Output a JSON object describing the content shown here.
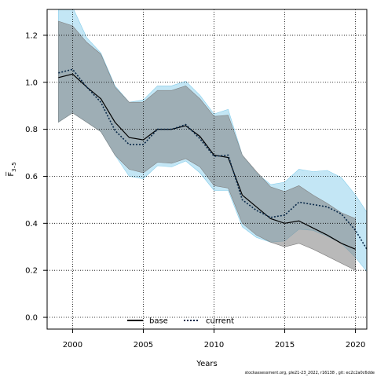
{
  "chart_data": {
    "type": "line",
    "xlabel": "Years",
    "ylabel": "F̅",
    "ylabel_sub": "3–5",
    "xlim": [
      1998.2,
      2020.8
    ],
    "ylim": [
      -0.05,
      1.31
    ],
    "x_ticks": [
      2000,
      2005,
      2010,
      2015,
      2020
    ],
    "y_ticks": [
      0.0,
      0.2,
      0.4,
      0.6,
      0.8,
      1.0,
      1.2
    ],
    "y_tick_labels": [
      "0.0",
      "0.2",
      "0.4",
      "0.6",
      "0.8",
      "1.0",
      "1.2"
    ],
    "grid": true,
    "legend_position": "bottom-center",
    "series": [
      {
        "name": "base",
        "style": "solid",
        "line_color": "#000000",
        "band_color": "#808080",
        "x": [
          1999,
          2000,
          2001,
          2002,
          2003,
          2004,
          2005,
          2006,
          2007,
          2008,
          2009,
          2010,
          2011,
          2012,
          2013,
          2014,
          2015,
          2016,
          2017,
          2018,
          2019,
          2020
        ],
        "values": [
          1.02,
          1.035,
          0.98,
          0.93,
          0.83,
          0.765,
          0.755,
          0.8,
          0.8,
          0.815,
          0.77,
          0.69,
          0.68,
          0.52,
          0.47,
          0.42,
          0.4,
          0.41,
          0.38,
          0.35,
          0.315,
          0.29
        ],
        "lower": [
          0.83,
          0.87,
          0.83,
          0.79,
          0.69,
          0.63,
          0.615,
          0.66,
          0.655,
          0.675,
          0.64,
          0.56,
          0.55,
          0.4,
          0.35,
          0.32,
          0.3,
          0.315,
          0.29,
          0.26,
          0.23,
          0.2
        ],
        "upper": [
          1.26,
          1.24,
          1.17,
          1.12,
          0.98,
          0.915,
          0.915,
          0.965,
          0.965,
          0.985,
          0.93,
          0.855,
          0.86,
          0.69,
          0.62,
          0.555,
          0.535,
          0.56,
          0.52,
          0.485,
          0.445,
          0.42
        ]
      },
      {
        "name": "current",
        "style": "dotted",
        "line_color": "#0a2a4a",
        "band_color": "#87ceeb",
        "x": [
          1999,
          2000,
          2001,
          2002,
          2003,
          2004,
          2005,
          2006,
          2007,
          2008,
          2009,
          2010,
          2011,
          2012,
          2013,
          2014,
          2015,
          2016,
          2017,
          2018,
          2019,
          2020,
          2021
        ],
        "values": [
          1.04,
          1.055,
          0.98,
          0.915,
          0.795,
          0.735,
          0.735,
          0.8,
          0.8,
          0.82,
          0.76,
          0.685,
          0.69,
          0.5,
          0.455,
          0.425,
          0.435,
          0.49,
          0.48,
          0.47,
          0.44,
          0.37,
          0.27
        ],
        "lower": [
          0.83,
          0.87,
          0.83,
          0.79,
          0.69,
          0.6,
          0.59,
          0.645,
          0.64,
          0.665,
          0.615,
          0.54,
          0.54,
          0.385,
          0.34,
          0.32,
          0.325,
          0.375,
          0.37,
          0.345,
          0.315,
          0.255,
          0.18
        ],
        "upper": [
          1.32,
          1.32,
          1.19,
          1.125,
          0.985,
          0.915,
          0.925,
          0.985,
          0.985,
          1.005,
          0.945,
          0.865,
          0.885,
          0.69,
          0.615,
          0.565,
          0.575,
          0.63,
          0.62,
          0.625,
          0.595,
          0.52,
          0.43
        ]
      }
    ]
  },
  "footer_text": "stockassessment.org, ple21-23_2022, r16138 , git: ec2c2a0c6dde"
}
